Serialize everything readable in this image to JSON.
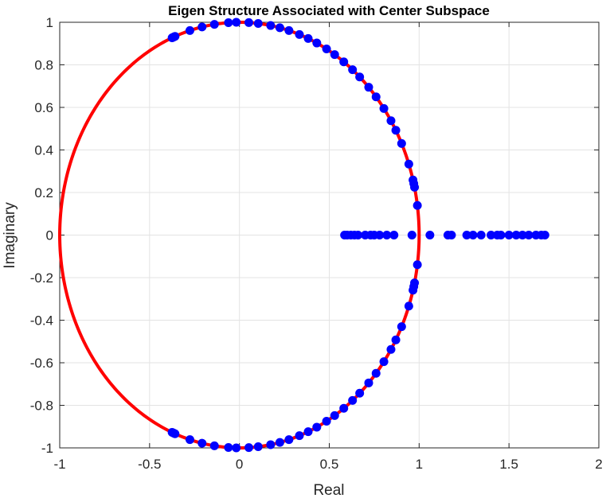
{
  "chart_data": {
    "type": "scatter",
    "title": "Eigen Structure Associated with Center Subspace",
    "xlabel": "Real",
    "ylabel": "Imaginary",
    "xlim": [
      -1,
      2
    ],
    "ylim": [
      -1,
      1
    ],
    "xticks": [
      "-1",
      "-0.5",
      "0",
      "0.5",
      "1",
      "1.5",
      "2"
    ],
    "yticks": [
      "1",
      "0.8",
      "0.6",
      "0.4",
      "0.2",
      "0",
      "-0.2",
      "-0.4",
      "-0.6",
      "-0.8",
      "-1"
    ],
    "grid": true,
    "unit_circle": {
      "type": "line",
      "color": "#ff0000"
    },
    "points_color": "#0000ff",
    "circle_point_angles_deg": [
      8,
      13,
      14,
      15,
      19.5,
      25.5,
      29.5,
      32.5,
      36.5,
      40.5,
      44,
      48,
      51,
      54.5,
      58,
      61,
      64.5,
      67.5,
      70.5,
      74,
      77,
      80,
      84,
      87,
      91,
      93.5,
      98,
      102,
      106,
      111,
      111.5,
      112
    ],
    "real_axis_points": [
      0.585,
      0.6,
      0.62,
      0.64,
      0.66,
      0.7,
      0.73,
      0.75,
      0.78,
      0.82,
      0.86,
      0.96,
      1.06,
      1.16,
      1.18,
      1.265,
      1.3,
      1.345,
      1.4,
      1.435,
      1.455,
      1.5,
      1.54,
      1.575,
      1.61,
      1.65,
      1.68,
      1.7
    ]
  }
}
